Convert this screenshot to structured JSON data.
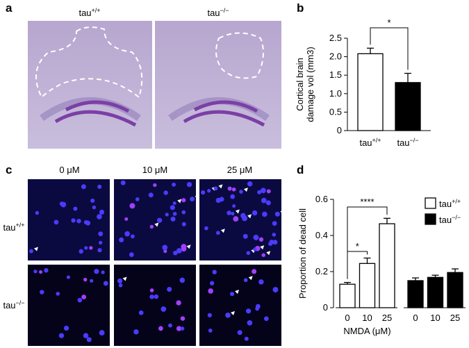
{
  "panels": {
    "a": {
      "label": "a",
      "columns": [
        "tau+/+",
        "tau−/−"
      ]
    },
    "c": {
      "label": "c",
      "columns": [
        "0 μM",
        "10 μM",
        "25 μM"
      ],
      "rows": [
        "tau+/+",
        "tau−/−"
      ]
    }
  },
  "chart_data": [
    {
      "type": "bar",
      "panel": "b",
      "ylabel": [
        "Cortical brain",
        "damage vol (mm3)"
      ],
      "categories": [
        "tau+/+",
        "tau−/−"
      ],
      "values": [
        2.08,
        1.3
      ],
      "errors": [
        0.15,
        0.25
      ],
      "colors": [
        "#ffffff",
        "#000000"
      ],
      "ylim": [
        0,
        2.5
      ],
      "yticks": [
        0,
        0.5,
        {
          "value": 1,
          "label": "1.0"
        },
        1.5,
        {
          "value": 2,
          "label": "2.0"
        },
        2.5
      ],
      "annotations": [
        "*"
      ]
    },
    {
      "type": "grouped-bar",
      "panel": "d",
      "ylabel": [
        "Proportion of dead cell"
      ],
      "xlabel": "NMDA (μM)",
      "categories": [
        "0",
        "10",
        "25"
      ],
      "series": [
        {
          "name": "tau+/+",
          "color": "#ffffff",
          "values": [
            0.13,
            0.245,
            0.465
          ],
          "errors": [
            0.01,
            0.03,
            0.03
          ]
        },
        {
          "name": "tau−/−",
          "color": "#000000",
          "values": [
            0.15,
            0.168,
            0.195
          ],
          "errors": [
            0.015,
            0.012,
            0.02
          ]
        }
      ],
      "ylim": [
        0,
        0.6
      ],
      "yticks": [
        0,
        0.2,
        0.4,
        0.6
      ],
      "legend": "upper right",
      "annotations": [
        "*",
        "****"
      ]
    }
  ]
}
